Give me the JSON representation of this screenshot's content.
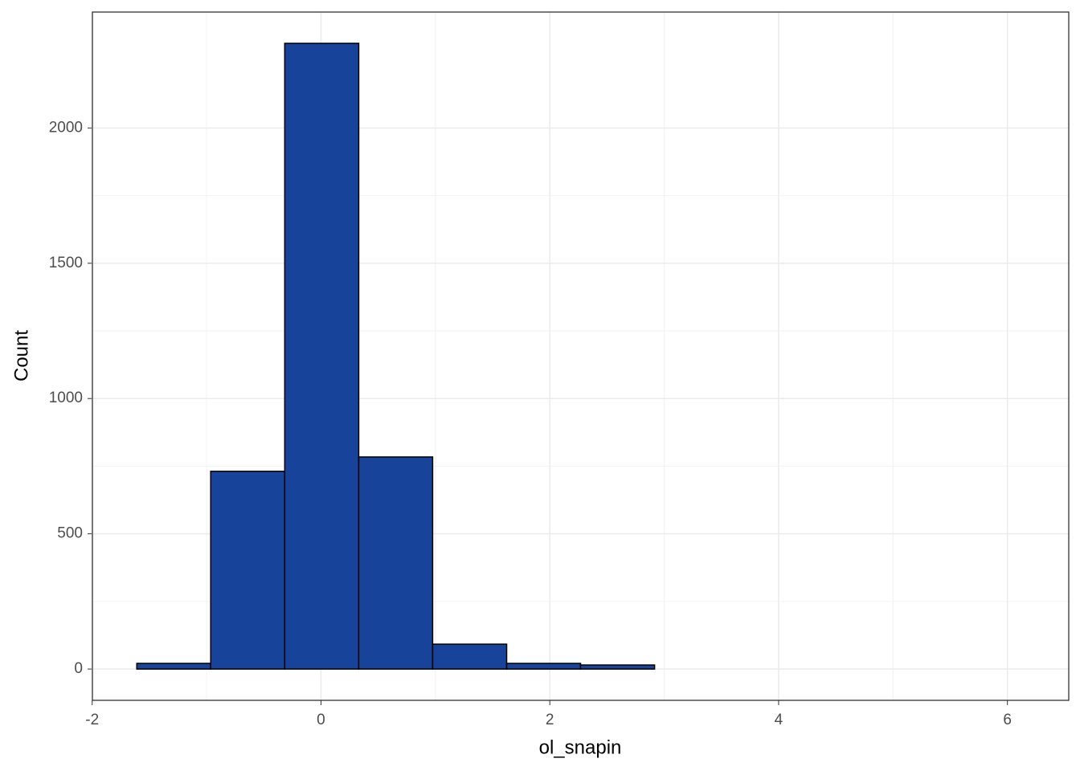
{
  "chart_data": {
    "type": "histogram",
    "x_label": "ol_snapin",
    "y_label": "Count",
    "bins": [
      -1.61,
      -0.964,
      -0.317,
      0.33,
      0.976,
      1.623,
      2.269,
      2.916,
      3.562,
      4.209,
      4.855,
      5.502,
      6.148
    ],
    "values": [
      21,
      731,
      2313,
      784,
      92,
      21,
      15,
      0,
      0,
      0,
      0,
      0
    ],
    "color": "#18439a",
    "edge_color": "#000000",
    "xlim": [
      -1.998,
      6.536
    ],
    "xticks": [
      -2,
      0,
      2,
      4,
      6
    ],
    "ylim": [
      -115.6,
      2428.6
    ],
    "yticks": [
      0,
      500,
      1000,
      1500,
      2000
    ],
    "grid": true
  }
}
